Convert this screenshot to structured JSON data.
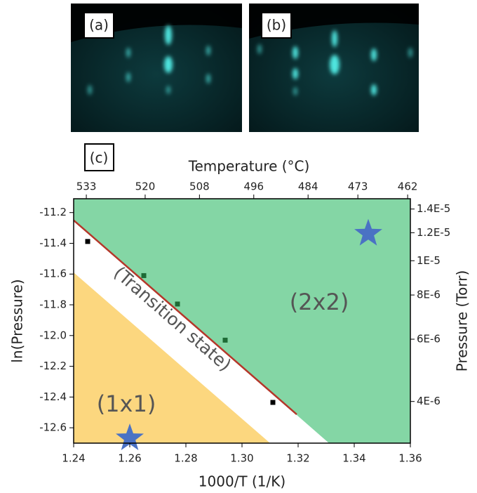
{
  "panels": [
    {
      "label": "(a)"
    },
    {
      "label": "(b)"
    },
    {
      "label": "(c)"
    }
  ],
  "chart_data": {
    "type": "phase",
    "x_label": "1000/T (1/K)",
    "y_label": "ln(Pressure)",
    "y2_label": "Pressure (Torr)",
    "x2_label": "Temperature (°C)",
    "xlim": [
      1.24,
      1.36
    ],
    "xticks": [
      1.24,
      1.26,
      1.28,
      {
        "value": 1.3,
        "label": "1.30"
      },
      1.32,
      1.34,
      1.36
    ],
    "ylim": [
      -12.7,
      -11.11
    ],
    "yticks": [
      -11.2,
      -11.4,
      -11.6,
      -11.8,
      {
        "value": -12.0,
        "label": "-12.0"
      },
      -12.2,
      -12.4,
      -12.6
    ],
    "x2lim": [
      535.8,
      461.4
    ],
    "x2ticks": [
      533,
      520,
      508,
      496,
      484,
      473,
      462
    ],
    "y2lim": [
      3.05e-06,
      1.497e-05
    ],
    "y2_log": true,
    "y2ticks": [
      {
        "value": 1.4e-05,
        "label": "1.4E-5"
      },
      {
        "value": 1.2e-05,
        "label": "1.2E-5"
      },
      {
        "value": 1e-05,
        "label": "1E-5"
      },
      {
        "value": 8e-06,
        "label": "8E-6"
      },
      {
        "value": 6e-06,
        "label": "6E-6"
      },
      {
        "value": 4e-06,
        "label": "4E-6"
      }
    ],
    "regions": [
      {
        "name": "(2x2)",
        "color": "#84d6a5",
        "x": [
          1.24,
          1.24,
          1.36,
          1.36,
          1.331
        ],
        "y": [
          -11.25,
          -11.11,
          -11.11,
          -12.7,
          -12.7
        ]
      },
      {
        "name": "(1x1)",
        "color": "#fcd77f",
        "x": [
          1.24,
          1.24,
          1.31
        ],
        "y": [
          -11.59,
          -12.7,
          -12.7
        ]
      }
    ],
    "boundary": {
      "color": "#b5372a",
      "x": [
        1.24,
        1.3195
      ],
      "y": [
        -11.25,
        -12.513
      ]
    },
    "annotation": "(Transition state)",
    "points": {
      "x": [
        1.245,
        1.265,
        1.277,
        1.294,
        1.311
      ],
      "y": [
        -11.388,
        -11.61,
        -11.795,
        -12.03,
        -12.435
      ],
      "colors": [
        "#000000",
        "#1e6b35",
        "#1e6b35",
        "#1e6b35",
        "#000000"
      ]
    },
    "stars": {
      "color": "#4a72c4",
      "x": [
        1.345,
        1.26
      ],
      "y": [
        -11.337,
        -12.668
      ]
    }
  }
}
